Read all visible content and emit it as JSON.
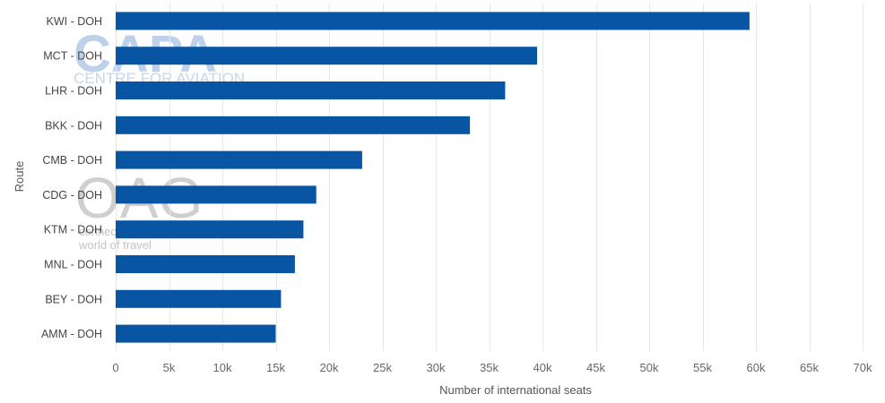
{
  "chart_data": {
    "type": "bar",
    "orientation": "horizontal",
    "categories": [
      "KWI - DOH",
      "MCT - DOH",
      "LHR - DOH",
      "BKK - DOH",
      "CMB - DOH",
      "CDG - DOH",
      "KTM - DOH",
      "MNL - DOH",
      "BEY - DOH",
      "AMM - DOH"
    ],
    "values": [
      59400,
      39500,
      36500,
      33200,
      23100,
      18800,
      17600,
      16800,
      15500,
      15000
    ],
    "xlabel": "Number of international seats",
    "ylabel": "Route",
    "xlim": [
      0,
      70000
    ],
    "xticks": [
      0,
      5000,
      10000,
      15000,
      20000,
      25000,
      30000,
      35000,
      40000,
      45000,
      50000,
      55000,
      60000,
      65000,
      70000
    ],
    "xtick_labels": [
      "0",
      "5k",
      "10k",
      "15k",
      "20k",
      "25k",
      "30k",
      "35k",
      "40k",
      "45k",
      "50k",
      "55k",
      "60k",
      "65k",
      "70k"
    ],
    "grid": true,
    "legend": "none",
    "bar_color": "#0755a3",
    "grid_color": "#e6e6e6"
  },
  "watermarks": {
    "capa_logo": "CAPA",
    "capa_text": "CENTRE FOR AVIATION",
    "oag_logo": "OAG",
    "oag_text_line1": "connec",
    "oag_text_line2": "world of travel"
  }
}
